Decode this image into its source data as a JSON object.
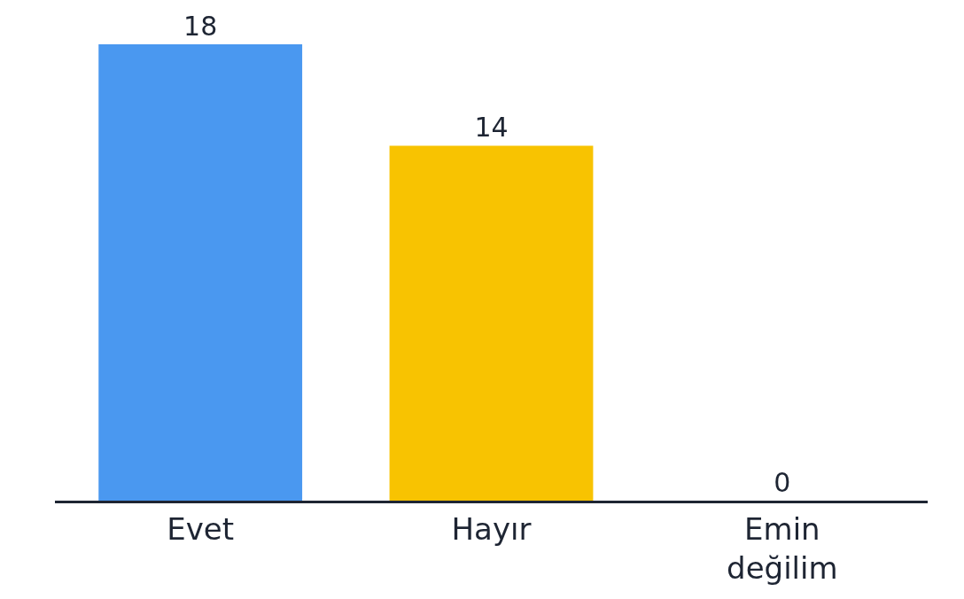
{
  "chart_data": {
    "type": "bar",
    "categories": [
      "Evet",
      "Hayır",
      "Emin değilim"
    ],
    "values": [
      18,
      14,
      0
    ],
    "colors": [
      "#4a98f0",
      "#f8c301",
      "#9e9e9e"
    ],
    "data_labels": true
  }
}
